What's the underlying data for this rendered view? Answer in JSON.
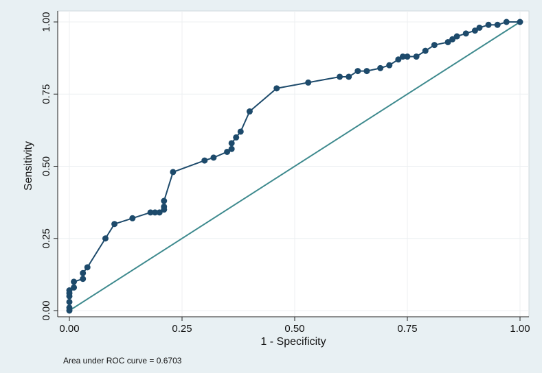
{
  "chart_data": {
    "type": "line",
    "title": "",
    "xlabel": "1 - Specificity",
    "ylabel": "Sensitivity",
    "xlim": [
      0,
      1
    ],
    "ylim": [
      0,
      1
    ],
    "xticks": [
      "0.00",
      "0.25",
      "0.50",
      "0.75",
      "1.00"
    ],
    "yticks": [
      "0.00",
      "0.25",
      "0.50",
      "0.75",
      "1.00"
    ],
    "grid": true,
    "note": "Area under ROC curve = 0.6703",
    "colors": {
      "curve": "#1d4a6b",
      "reference": "#3e8a8e"
    },
    "series": [
      {
        "name": "ROC curve",
        "x": [
          0,
          0,
          0,
          0,
          0,
          0,
          0.01,
          0.01,
          0.03,
          0.03,
          0.04,
          0.08,
          0.1,
          0.14,
          0.18,
          0.19,
          0.2,
          0.21,
          0.21,
          0.21,
          0.23,
          0.3,
          0.32,
          0.35,
          0.36,
          0.36,
          0.37,
          0.38,
          0.4,
          0.46,
          0.53,
          0.6,
          0.62,
          0.64,
          0.66,
          0.69,
          0.71,
          0.73,
          0.74,
          0.75,
          0.77,
          0.79,
          0.81,
          0.84,
          0.85,
          0.86,
          0.88,
          0.9,
          0.91,
          0.93,
          0.95,
          0.97,
          1.0
        ],
        "y": [
          0,
          0.01,
          0.03,
          0.05,
          0.06,
          0.07,
          0.08,
          0.1,
          0.11,
          0.13,
          0.15,
          0.25,
          0.3,
          0.32,
          0.34,
          0.34,
          0.34,
          0.35,
          0.36,
          0.38,
          0.48,
          0.52,
          0.53,
          0.55,
          0.56,
          0.58,
          0.6,
          0.62,
          0.69,
          0.77,
          0.79,
          0.81,
          0.81,
          0.83,
          0.83,
          0.84,
          0.85,
          0.87,
          0.88,
          0.88,
          0.88,
          0.9,
          0.92,
          0.93,
          0.94,
          0.95,
          0.96,
          0.97,
          0.98,
          0.99,
          0.99,
          1.0,
          1.0
        ]
      },
      {
        "name": "Reference",
        "x": [
          0,
          1
        ],
        "y": [
          0,
          1
        ]
      }
    ]
  }
}
